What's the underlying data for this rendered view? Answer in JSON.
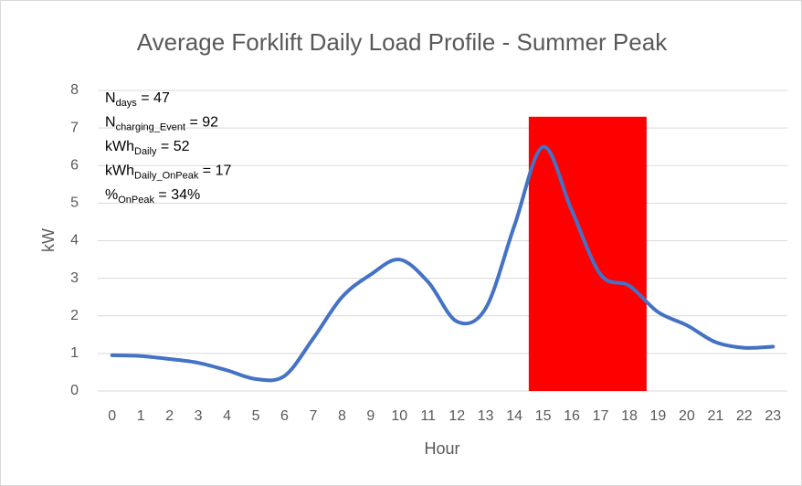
{
  "chart_data": {
    "type": "line",
    "title": "Average Forklift Daily Load Profile - Summer Peak",
    "x_label": "Hour",
    "y_label": "kW",
    "x": [
      0,
      1,
      2,
      3,
      4,
      5,
      6,
      7,
      8,
      9,
      10,
      11,
      12,
      13,
      14,
      15,
      16,
      17,
      18,
      19,
      20,
      21,
      22,
      23
    ],
    "series": [
      {
        "name": "kW",
        "color": "#4472c4",
        "values": [
          0.95,
          0.93,
          0.85,
          0.75,
          0.55,
          0.32,
          0.4,
          1.4,
          2.5,
          3.1,
          3.5,
          2.9,
          1.85,
          2.2,
          4.4,
          6.5,
          4.8,
          3.1,
          2.8,
          2.1,
          1.75,
          1.3,
          1.15,
          1.18
        ]
      }
    ],
    "highlight": {
      "x": [
        14.5,
        18.6
      ],
      "y": [
        0,
        7.3
      ],
      "color": "#ff0000"
    },
    "xlim": [
      -0.5,
      23.5
    ],
    "xticks": [
      0,
      1,
      2,
      3,
      4,
      5,
      6,
      7,
      8,
      9,
      10,
      11,
      12,
      13,
      14,
      15,
      16,
      17,
      18,
      19,
      20,
      21,
      22,
      23
    ],
    "ylim": [
      0,
      8
    ],
    "yticks": [
      0,
      1,
      2,
      3,
      4,
      5,
      6,
      7,
      8
    ],
    "grid": true,
    "annotations": [
      {
        "text": "N",
        "sub": "days",
        "rest": " = 47"
      },
      {
        "text": "N",
        "sub": "charging_Event",
        "rest": " = 92"
      },
      {
        "text": "kWh",
        "sub": "Daily",
        "rest": " = 52"
      },
      {
        "text": "kWh",
        "sub": "Daily_OnPeak",
        "rest": " = 17"
      },
      {
        "text": "%",
        "sub": "OnPeak",
        "rest": " = 34%"
      }
    ]
  }
}
